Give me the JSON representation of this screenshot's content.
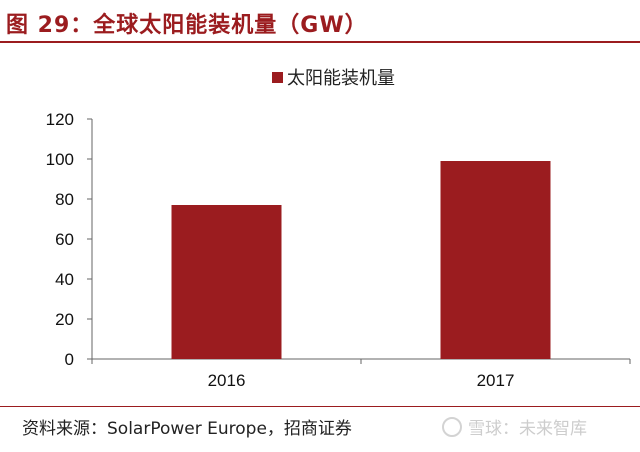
{
  "header": {
    "title": "图 29：全球太阳能装机量（GW）"
  },
  "chart_data": {
    "type": "bar",
    "categories": [
      "2016",
      "2017"
    ],
    "series": [
      {
        "name": "太阳能装机量",
        "values": [
          77,
          99
        ]
      }
    ],
    "yticks": [
      "0",
      "20",
      "40",
      "60",
      "80",
      "100",
      "120"
    ],
    "ylim": [
      0,
      120
    ],
    "legend_position": "top-center",
    "grid": false,
    "bar_color": "#9b1c1f"
  },
  "footer": {
    "source": "资料来源：SolarPower Europe，招商证券",
    "watermark": "雪球：未来智库"
  }
}
